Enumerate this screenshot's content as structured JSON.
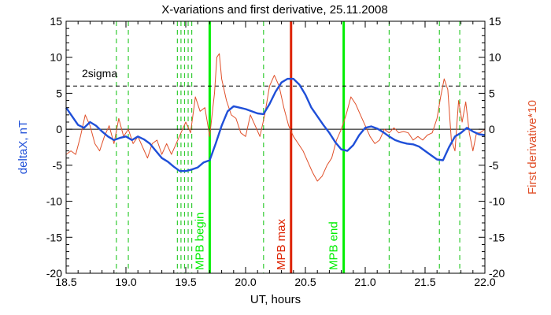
{
  "chart_data": {
    "type": "line",
    "title": "X-variations and first derivative, 25.11.2008",
    "xlabel": "UT, hours",
    "ylabel_left": "deltaX, nT",
    "ylabel_right": "First derivative*10",
    "xlim": [
      18.5,
      22.0
    ],
    "ylim": [
      -20,
      15
    ],
    "x_ticks": [
      "18.5",
      "19.0",
      "19.5",
      "20.0",
      "20.5",
      "21.0",
      "21.5",
      "22.0"
    ],
    "y_ticks": [
      "-20",
      "-15",
      "-10",
      "-5",
      "0",
      "5",
      "10",
      "15"
    ],
    "zero_line": 0,
    "sigma": {
      "label": "2sigma",
      "value": 6
    },
    "dashed_markers": [
      18.92,
      19.02,
      19.43,
      19.46,
      19.49,
      19.52,
      19.55,
      20.15,
      21.2,
      21.62,
      21.79
    ],
    "event_markers": [
      {
        "label": "MPB begin",
        "x": 19.7,
        "color": "#00ee00"
      },
      {
        "label": "MPB max",
        "x": 20.38,
        "color": "#dd2200"
      },
      {
        "label": "MPB end",
        "x": 20.82,
        "color": "#00ee00"
      }
    ],
    "series": [
      {
        "name": "",
        "color": "#1f4fd8",
        "x": [
          18.5,
          18.55,
          18.6,
          18.65,
          18.7,
          18.75,
          18.8,
          18.85,
          18.9,
          18.95,
          19.0,
          19.05,
          19.1,
          19.15,
          19.2,
          19.25,
          19.3,
          19.35,
          19.4,
          19.45,
          19.5,
          19.55,
          19.6,
          19.65,
          19.7,
          19.75,
          19.8,
          19.85,
          19.9,
          19.95,
          20.0,
          20.05,
          20.1,
          20.15,
          20.2,
          20.25,
          20.3,
          20.35,
          20.4,
          20.45,
          20.5,
          20.55,
          20.6,
          20.65,
          20.7,
          20.75,
          20.8,
          20.85,
          20.9,
          20.95,
          21.0,
          21.05,
          21.1,
          21.15,
          21.2,
          21.25,
          21.3,
          21.35,
          21.4,
          21.45,
          21.5,
          21.55,
          21.6,
          21.65,
          21.7,
          21.75,
          21.8,
          21.85,
          21.9,
          21.95,
          22.0
        ],
        "y": [
          3.0,
          1.8,
          0.6,
          0.2,
          1.0,
          0.5,
          -0.3,
          -1.0,
          -1.5,
          -1.2,
          -1.0,
          -1.5,
          -1.0,
          -1.4,
          -2.0,
          -3.0,
          -4.0,
          -4.5,
          -5.2,
          -5.8,
          -5.8,
          -5.6,
          -5.3,
          -4.6,
          -4.3,
          -2.0,
          0.5,
          2.5,
          3.2,
          3.0,
          2.8,
          2.5,
          2.2,
          2.1,
          3.5,
          5.2,
          6.5,
          7.0,
          7.0,
          6.2,
          4.8,
          3.0,
          1.8,
          0.6,
          -0.5,
          -1.8,
          -2.8,
          -3.0,
          -2.2,
          -0.8,
          0.2,
          0.4,
          0.1,
          -0.4,
          -1.0,
          -1.5,
          -1.8,
          -2.0,
          -2.1,
          -2.4,
          -3.0,
          -3.6,
          -4.2,
          -4.3,
          -2.5,
          -1.0,
          -0.5,
          0.2,
          -0.3,
          -0.7,
          -0.8
        ]
      },
      {
        "name": "",
        "color": "#e0502a",
        "x": [
          18.5,
          18.54,
          18.58,
          18.62,
          18.66,
          18.7,
          18.74,
          18.78,
          18.82,
          18.86,
          18.9,
          18.94,
          18.98,
          19.02,
          19.06,
          19.1,
          19.14,
          19.18,
          19.22,
          19.26,
          19.3,
          19.34,
          19.38,
          19.42,
          19.46,
          19.5,
          19.54,
          19.58,
          19.62,
          19.66,
          19.7,
          19.72,
          19.74,
          19.76,
          19.78,
          19.8,
          19.84,
          19.88,
          19.92,
          19.96,
          20.0,
          20.04,
          20.08,
          20.12,
          20.16,
          20.2,
          20.24,
          20.28,
          20.32,
          20.36,
          20.4,
          20.44,
          20.48,
          20.52,
          20.56,
          20.6,
          20.64,
          20.68,
          20.72,
          20.76,
          20.8,
          20.84,
          20.88,
          20.92,
          20.96,
          21.0,
          21.04,
          21.08,
          21.12,
          21.16,
          21.2,
          21.24,
          21.28,
          21.32,
          21.36,
          21.4,
          21.44,
          21.48,
          21.52,
          21.56,
          21.6,
          21.63,
          21.66,
          21.69,
          21.72,
          21.75,
          21.78,
          21.81,
          21.84,
          21.87,
          21.9,
          21.93,
          21.96,
          22.0
        ],
        "y": [
          -3.5,
          -3.0,
          -3.5,
          -1.0,
          2.0,
          0.5,
          -2.0,
          -3.0,
          -1.0,
          0.5,
          -2.0,
          1.5,
          -1.0,
          0.0,
          -2.0,
          -1.0,
          -2.5,
          -4.0,
          -2.0,
          -1.5,
          -3.5,
          -2.0,
          -3.5,
          -2.0,
          -0.5,
          1.0,
          -0.5,
          4.5,
          2.5,
          3.0,
          -1.0,
          2.0,
          5.0,
          10.0,
          10.5,
          7.0,
          4.0,
          2.0,
          1.5,
          -0.5,
          -1.0,
          2.0,
          0.5,
          -1.0,
          2.0,
          6.0,
          7.5,
          6.0,
          3.0,
          0.5,
          -1.0,
          -2.0,
          -3.0,
          -4.5,
          -6.0,
          -7.2,
          -6.5,
          -5.0,
          -4.0,
          -1.5,
          0.0,
          2.0,
          4.5,
          3.5,
          2.0,
          0.5,
          -1.0,
          -2.0,
          -1.5,
          0.0,
          -0.5,
          0.2,
          -0.5,
          -0.3,
          -0.5,
          -1.5,
          -1.0,
          -1.5,
          -0.8,
          -0.5,
          1.5,
          4.5,
          7.0,
          5.5,
          -1.5,
          -3.0,
          4.0,
          1.0,
          3.8,
          -0.5,
          -3.0,
          -0.5,
          -0.5,
          0.0
        ]
      }
    ]
  }
}
